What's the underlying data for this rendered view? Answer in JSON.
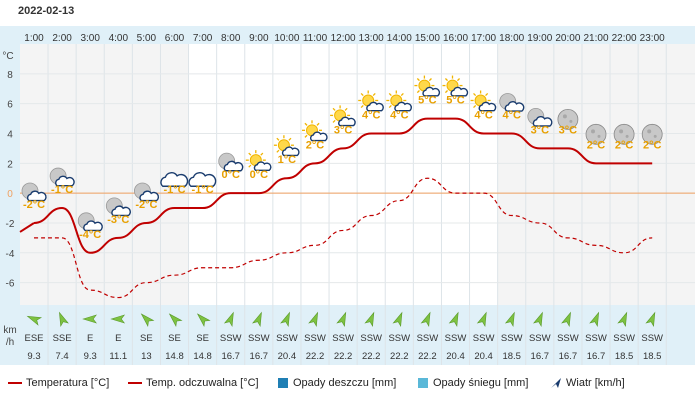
{
  "header": {
    "date": "2022-02-13"
  },
  "chart_data": {
    "type": "line",
    "x": [
      "1:00",
      "2:00",
      "3:00",
      "4:00",
      "5:00",
      "6:00",
      "7:00",
      "8:00",
      "9:00",
      "10:00",
      "11:00",
      "12:00",
      "13:00",
      "14:00",
      "15:00",
      "16:00",
      "17:00",
      "18:00",
      "19:00",
      "20:00",
      "21:00",
      "22:00",
      "23:00"
    ],
    "y_unit": "°C",
    "ylim": [
      -7.5,
      10
    ],
    "y_ticks": [
      -6,
      -4,
      -2,
      0,
      2,
      4,
      6,
      8
    ],
    "series": [
      {
        "name": "Temperatura [°C]",
        "values": [
          -2,
          -1,
          -4,
          -3,
          -2,
          -1,
          -1,
          0,
          0,
          1,
          2,
          3,
          4,
          4,
          5,
          5,
          4,
          4,
          3,
          3,
          2,
          2,
          2
        ],
        "style": "solid",
        "color": "#c00000"
      },
      {
        "name": "Temp. odczuwalna [°C]",
        "values": [
          -3,
          -3,
          -6.5,
          -7,
          -6,
          -5.5,
          -5,
          -5,
          -4.5,
          -4,
          -3.5,
          -2.5,
          -1.5,
          -0.5,
          1,
          0,
          0,
          -1.5,
          -2,
          -3,
          -3.5,
          -4,
          -3
        ],
        "style": "dashed",
        "color": "#c00000"
      }
    ],
    "temp_labels": [
      "-2°C",
      "-1°C",
      "-4°C",
      "-3°C",
      "-2°C",
      "-1°C",
      "-1°C",
      "0°C",
      "0°C",
      "1°C",
      "2°C",
      "3°C",
      "4°C",
      "4°C",
      "5°C",
      "5°C",
      "4°C",
      "4°C",
      "3°C",
      "3°C",
      "2°C",
      "2°C",
      "2°C"
    ],
    "weather_icons": [
      "cloudy-night",
      "cloudy-night",
      "cloudy-night",
      "cloudy-night",
      "cloudy-night",
      "cloud",
      "cloud",
      "cloudy-night",
      "partly-sunny",
      "partly-sunny",
      "partly-sunny",
      "partly-sunny",
      "partly-sunny",
      "partly-sunny",
      "partly-sunny",
      "partly-sunny",
      "partly-sunny",
      "cloudy-night",
      "cloudy-night",
      "moon",
      "moon",
      "moon",
      "moon"
    ],
    "wind": {
      "unit_top": "km",
      "unit_bottom": "/h",
      "directions": [
        "ESE",
        "SSE",
        "E",
        "E",
        "SE",
        "SE",
        "SE",
        "SSW",
        "SSW",
        "SSW",
        "SSW",
        "SSW",
        "SSW",
        "SSW",
        "SSW",
        "SSW",
        "SSW",
        "SSW",
        "SSW",
        "SSW",
        "SSW",
        "SSW",
        "SSW"
      ],
      "speeds": [
        "9.3",
        "7.4",
        "9.3",
        "11.1",
        "13",
        "14.8",
        "14.8",
        "16.7",
        "16.7",
        "20.4",
        "22.2",
        "22.2",
        "22.2",
        "22.2",
        "22.2",
        "20.4",
        "20.4",
        "18.5",
        "16.7",
        "16.7",
        "16.7",
        "18.5",
        "18.5"
      ]
    },
    "legend": [
      {
        "label": "Temperatura [°C]",
        "kind": "solid-line",
        "color": "#c00000"
      },
      {
        "label": "Temp. odczuwalna [°C]",
        "kind": "dashed-line",
        "color": "#c00000"
      },
      {
        "label": "Opady deszczu [mm]",
        "kind": "square",
        "color": "#1f7fb4"
      },
      {
        "label": "Opady śniegu [mm]",
        "kind": "square",
        "color": "#5ab8d8"
      },
      {
        "label": "Wiatr [km/h]",
        "kind": "arrow",
        "color": "#1a3c6e"
      }
    ],
    "legend_position": "bottom",
    "colors": {
      "text_yellow": "#e8a000",
      "axis_bg": "#e0f0f8",
      "zero_line": "#f0a060",
      "night_bg": "#f4f4f4"
    }
  }
}
